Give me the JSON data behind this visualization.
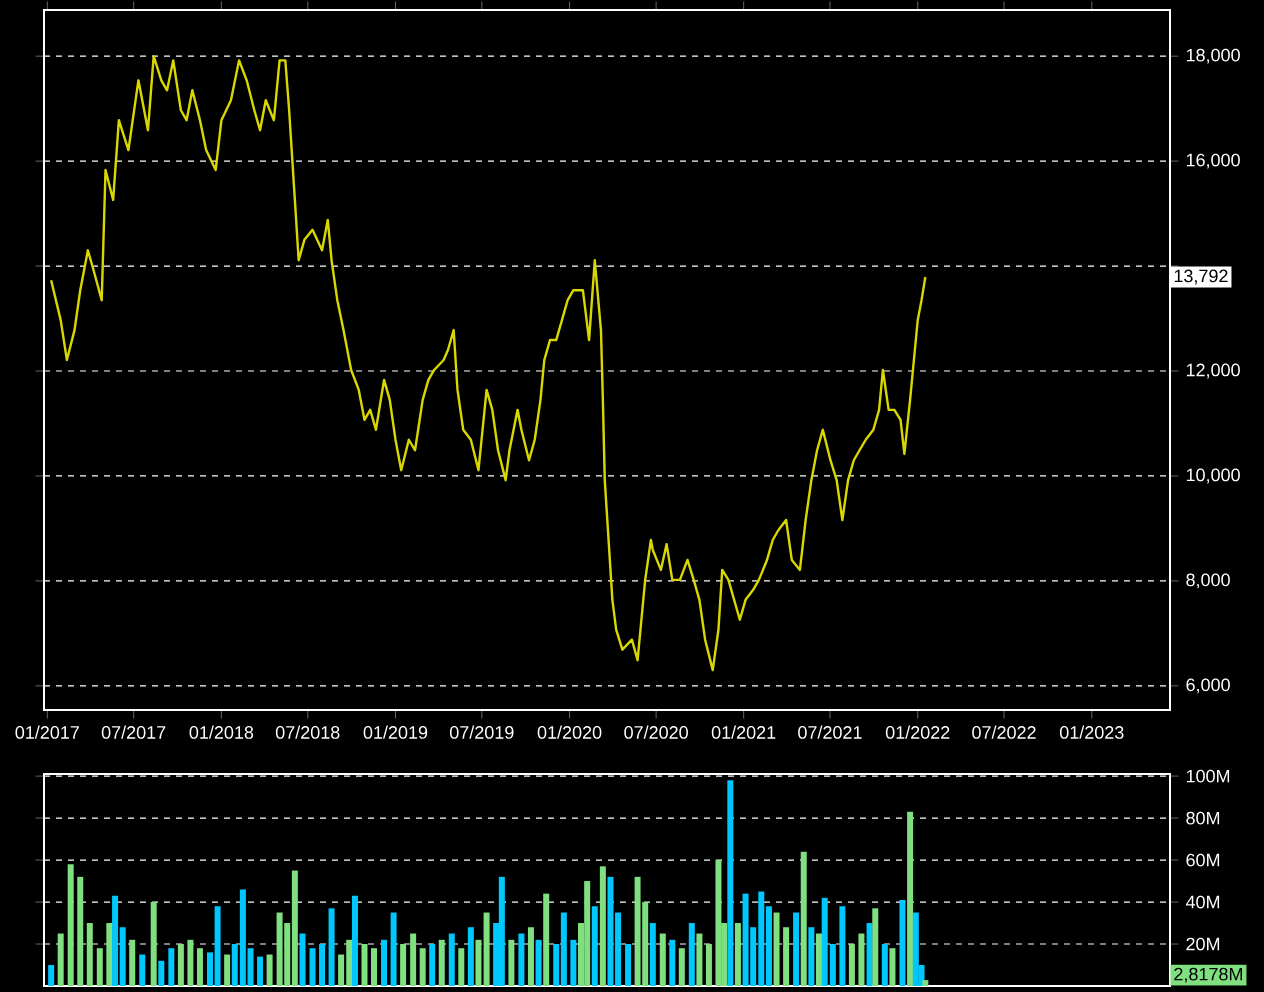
{
  "chart_data": [
    {
      "type": "line",
      "color": "#d8d800",
      "grid": "y",
      "line_style": "solid",
      "marker": "none",
      "xlim": [
        "2016-12-25",
        "2023-06-14"
      ],
      "xticks": [
        {
          "value": "2017-01",
          "label": "01/2017"
        },
        {
          "value": "2017-07",
          "label": "07/2017"
        },
        {
          "value": "2018-01",
          "label": "01/2018"
        },
        {
          "value": "2018-07",
          "label": "07/2018"
        },
        {
          "value": "2019-01",
          "label": "01/2019"
        },
        {
          "value": "2019-07",
          "label": "07/2019"
        },
        {
          "value": "2020-01",
          "label": "01/2020"
        },
        {
          "value": "2020-07",
          "label": "07/2020"
        },
        {
          "value": "2021-01",
          "label": "01/2021"
        },
        {
          "value": "2021-07",
          "label": "07/2021"
        },
        {
          "value": "2022-01",
          "label": "01/2022"
        },
        {
          "value": "2022-07",
          "label": "07/2022"
        },
        {
          "value": "2023-01",
          "label": "01/2023"
        }
      ],
      "ylim": [
        5540,
        18880
      ],
      "yticks": [
        {
          "value": 6000,
          "label": "6,000"
        },
        {
          "value": 8000,
          "label": "8,000"
        },
        {
          "value": 10000,
          "label": "10,000"
        },
        {
          "value": 12000,
          "label": "12,000"
        },
        {
          "value": 14000,
          "label": null
        },
        {
          "value": 16000,
          "label": "16,000"
        },
        {
          "value": 18000,
          "label": "18,000"
        }
      ],
      "annotations": [
        {
          "text": "13,792",
          "y": 13792
        }
      ],
      "x": [
        "2017-01-09",
        "2017-01-29",
        "2017-02-11",
        "2017-02-27",
        "2017-03-11",
        "2017-03-27",
        "2017-04-08",
        "2017-04-25",
        "2017-05-03",
        "2017-05-19",
        "2017-05-31",
        "2017-06-20",
        "2017-07-11",
        "2017-07-31",
        "2017-08-12",
        "2017-08-28",
        "2017-09-09",
        "2017-09-22",
        "2017-10-08",
        "2017-10-20",
        "2017-11-01",
        "2017-11-17",
        "2017-11-30",
        "2017-12-20",
        "2018-01-01",
        "2018-01-21",
        "2018-02-07",
        "2018-02-23",
        "2018-03-11",
        "2018-03-23",
        "2018-04-04",
        "2018-04-21",
        "2018-05-03",
        "2018-05-15",
        "2018-05-23",
        "2018-06-04",
        "2018-06-12",
        "2018-06-24",
        "2018-07-11",
        "2018-07-31",
        "2018-08-12",
        "2018-08-20",
        "2018-09-01",
        "2018-09-14",
        "2018-09-30",
        "2018-10-16",
        "2018-10-28",
        "2018-11-09",
        "2018-11-21",
        "2018-12-08",
        "2018-12-20",
        "2019-01-01",
        "2019-01-13",
        "2019-01-29",
        "2019-02-11",
        "2019-02-27",
        "2019-03-11",
        "2019-03-23",
        "2019-04-12",
        "2019-04-21",
        "2019-05-03",
        "2019-05-11",
        "2019-05-23",
        "2019-06-08",
        "2019-06-24",
        "2019-07-11",
        "2019-07-23",
        "2019-08-04",
        "2019-08-20",
        "2019-08-28",
        "2019-09-14",
        "2019-09-22",
        "2019-10-08",
        "2019-10-20",
        "2019-11-01",
        "2019-11-09",
        "2019-11-21",
        "2019-12-04",
        "2019-12-16",
        "2019-12-28",
        "2020-01-09",
        "2020-01-29",
        "2020-02-11",
        "2020-02-23",
        "2020-03-07",
        "2020-03-11",
        "2020-03-15",
        "2020-03-23",
        "2020-03-31",
        "2020-04-08",
        "2020-04-21",
        "2020-05-11",
        "2020-05-23",
        "2020-06-08",
        "2020-06-20",
        "2020-06-24",
        "2020-07-11",
        "2020-07-23",
        "2020-08-04",
        "2020-08-20",
        "2020-09-05",
        "2020-09-18",
        "2020-09-30",
        "2020-10-12",
        "2020-10-28",
        "2020-11-09",
        "2020-11-17",
        "2020-11-30",
        "2020-12-12",
        "2020-12-24",
        "2021-01-05",
        "2021-01-21",
        "2021-02-02",
        "2021-02-19",
        "2021-03-03",
        "2021-03-15",
        "2021-03-31",
        "2021-04-12",
        "2021-04-29",
        "2021-05-11",
        "2021-05-23",
        "2021-06-04",
        "2021-06-16",
        "2021-07-02",
        "2021-07-15",
        "2021-07-27",
        "2021-08-08",
        "2021-08-20",
        "2021-09-01",
        "2021-09-14",
        "2021-09-30",
        "2021-10-12",
        "2021-10-20",
        "2021-11-01",
        "2021-11-13",
        "2021-11-26",
        "2021-12-04",
        "2021-12-16",
        "2021-12-24",
        "2022-01-01",
        "2022-01-09",
        "2022-01-17"
      ],
      "values": [
        13730,
        12970,
        12210,
        12780,
        13540,
        14300,
        13920,
        13350,
        15830,
        15260,
        16780,
        16210,
        17540,
        16590,
        18000,
        17540,
        17350,
        17920,
        16970,
        16780,
        17350,
        16780,
        16210,
        15830,
        16780,
        17160,
        17920,
        17540,
        16970,
        16590,
        17160,
        16780,
        17920,
        17920,
        16970,
        15260,
        14110,
        14500,
        14690,
        14300,
        14880,
        14110,
        13350,
        12780,
        12020,
        11640,
        11070,
        11260,
        10880,
        11830,
        11450,
        10690,
        10110,
        10690,
        10490,
        11450,
        11830,
        12020,
        12210,
        12400,
        12780,
        11640,
        10880,
        10690,
        10110,
        11640,
        11260,
        10490,
        9920,
        10490,
        11260,
        10880,
        10300,
        10690,
        11450,
        12210,
        12590,
        12590,
        12970,
        13350,
        13540,
        13540,
        12590,
        14110,
        12780,
        11450,
        9920,
        8780,
        7640,
        7070,
        6690,
        6880,
        6490,
        8020,
        8780,
        8590,
        8210,
        8700,
        8020,
        8020,
        8400,
        8020,
        7640,
        6880,
        6300,
        7070,
        8210,
        8020,
        7640,
        7260,
        7640,
        7830,
        8020,
        8400,
        8780,
        8970,
        9160,
        8400,
        8210,
        9160,
        9920,
        10490,
        10880,
        10300,
        9920,
        9160,
        9920,
        10300,
        10490,
        10690,
        10880,
        11260,
        12020,
        11260,
        11260,
        11070,
        10420,
        11450,
        12210,
        12970,
        13350,
        13792
      ]
    },
    {
      "type": "bar",
      "grid": "y",
      "tick_labels": "y",
      "xlim": [
        "2016-12-25",
        "2023-06-14"
      ],
      "ylim": [
        0,
        101
      ],
      "yticks": [
        {
          "value": 20,
          "label": "20M"
        },
        {
          "value": 40,
          "label": "40M"
        },
        {
          "value": 60,
          "label": "60M"
        },
        {
          "value": 80,
          "label": "80M"
        },
        {
          "value": 100,
          "label": "100M"
        }
      ],
      "annotations": [
        "2,8178M"
      ],
      "x": [
        "2017-01-09",
        "2017-01-29",
        "2017-02-19",
        "2017-03-11",
        "2017-03-31",
        "2017-04-21",
        "2017-05-11",
        "2017-05-23",
        "2017-06-08",
        "2017-06-28",
        "2017-07-19",
        "2017-08-12",
        "2017-08-28",
        "2017-09-18",
        "2017-10-08",
        "2017-10-28",
        "2017-11-17",
        "2017-12-08",
        "2017-12-24",
        "2018-01-13",
        "2018-01-29",
        "2018-02-15",
        "2018-03-03",
        "2018-03-23",
        "2018-04-12",
        "2018-05-03",
        "2018-05-19",
        "2018-06-04",
        "2018-06-20",
        "2018-07-11",
        "2018-07-31",
        "2018-08-20",
        "2018-09-09",
        "2018-09-26",
        "2018-10-08",
        "2018-10-28",
        "2018-11-17",
        "2018-12-08",
        "2018-12-28",
        "2019-01-17",
        "2019-02-07",
        "2019-02-27",
        "2019-03-19",
        "2019-04-08",
        "2019-04-29",
        "2019-05-19",
        "2019-06-08",
        "2019-06-24",
        "2019-07-11",
        "2019-07-31",
        "2019-08-12",
        "2019-09-01",
        "2019-09-22",
        "2019-10-12",
        "2019-10-28",
        "2019-11-13",
        "2019-12-04",
        "2019-12-20",
        "2020-01-09",
        "2020-01-25",
        "2020-02-07",
        "2020-02-23",
        "2020-03-11",
        "2020-03-27",
        "2020-04-12",
        "2020-05-03",
        "2020-05-23",
        "2020-06-08",
        "2020-06-24",
        "2020-07-15",
        "2020-08-04",
        "2020-08-24",
        "2020-09-14",
        "2020-09-30",
        "2020-10-20",
        "2020-11-09",
        "2020-11-21",
        "2020-12-04",
        "2020-12-20",
        "2021-01-05",
        "2021-01-21",
        "2021-02-07",
        "2021-02-23",
        "2021-03-11",
        "2021-03-31",
        "2021-04-21",
        "2021-05-07",
        "2021-05-23",
        "2021-06-08",
        "2021-06-20",
        "2021-07-07",
        "2021-07-27",
        "2021-08-16",
        "2021-09-05",
        "2021-09-22",
        "2021-10-04",
        "2021-10-24",
        "2021-11-09",
        "2021-11-30",
        "2021-12-16",
        "2021-12-28",
        "2022-01-09",
        "2022-01-17"
      ],
      "values": [
        10,
        25,
        58,
        52,
        30,
        18,
        30,
        43,
        28,
        22,
        15,
        40,
        12,
        18,
        20,
        22,
        18,
        16,
        38,
        15,
        20,
        46,
        18,
        14,
        15,
        35,
        30,
        55,
        25,
        18,
        20,
        37,
        15,
        22,
        43,
        20,
        18,
        22,
        35,
        20,
        25,
        18,
        20,
        22,
        25,
        18,
        28,
        22,
        35,
        30,
        52,
        22,
        25,
        28,
        22,
        44,
        20,
        35,
        22,
        30,
        50,
        38,
        57,
        52,
        35,
        20,
        52,
        40,
        30,
        25,
        22,
        18,
        30,
        25,
        20,
        60,
        30,
        98,
        30,
        44,
        28,
        45,
        38,
        35,
        28,
        35,
        64,
        28,
        25,
        42,
        20,
        38,
        20,
        25,
        30,
        37,
        20,
        18,
        41,
        83,
        35,
        10,
        2.8178
      ],
      "colors": [
        "#00c8ff",
        "#80e080",
        "#80e080",
        "#80e080",
        "#80e080",
        "#80e080",
        "#80e080",
        "#00c8ff",
        "#00c8ff",
        "#80e080",
        "#00c8ff",
        "#80e080",
        "#00c8ff",
        "#00c8ff",
        "#80e080",
        "#80e080",
        "#80e080",
        "#00c8ff",
        "#00c8ff",
        "#80e080",
        "#00c8ff",
        "#00c8ff",
        "#00c8ff",
        "#00c8ff",
        "#80e080",
        "#80e080",
        "#80e080",
        "#80e080",
        "#00c8ff",
        "#00c8ff",
        "#00c8ff",
        "#00c8ff",
        "#80e080",
        "#80e080",
        "#00c8ff",
        "#80e080",
        "#80e080",
        "#00c8ff",
        "#00c8ff",
        "#80e080",
        "#80e080",
        "#80e080",
        "#00c8ff",
        "#80e080",
        "#00c8ff",
        "#80e080",
        "#00c8ff",
        "#80e080",
        "#80e080",
        "#00c8ff",
        "#00c8ff",
        "#80e080",
        "#00c8ff",
        "#80e080",
        "#00c8ff",
        "#80e080",
        "#00c8ff",
        "#00c8ff",
        "#00c8ff",
        "#80e080",
        "#80e080",
        "#00c8ff",
        "#80e080",
        "#00c8ff",
        "#00c8ff",
        "#00c8ff",
        "#80e080",
        "#80e080",
        "#00c8ff",
        "#80e080",
        "#00c8ff",
        "#80e080",
        "#00c8ff",
        "#80e080",
        "#80e080",
        "#80e080",
        "#80e080",
        "#00c8ff",
        "#80e080",
        "#00c8ff",
        "#00c8ff",
        "#00c8ff",
        "#00c8ff",
        "#80e080",
        "#80e080",
        "#00c8ff",
        "#80e080",
        "#00c8ff",
        "#80e080",
        "#00c8ff",
        "#00c8ff",
        "#00c8ff",
        "#80e080",
        "#80e080",
        "#00c8ff",
        "#80e080",
        "#00c8ff",
        "#80e080",
        "#00c8ff",
        "#80e080",
        "#00c8ff",
        "#00c8ff",
        "#80e080"
      ]
    }
  ]
}
